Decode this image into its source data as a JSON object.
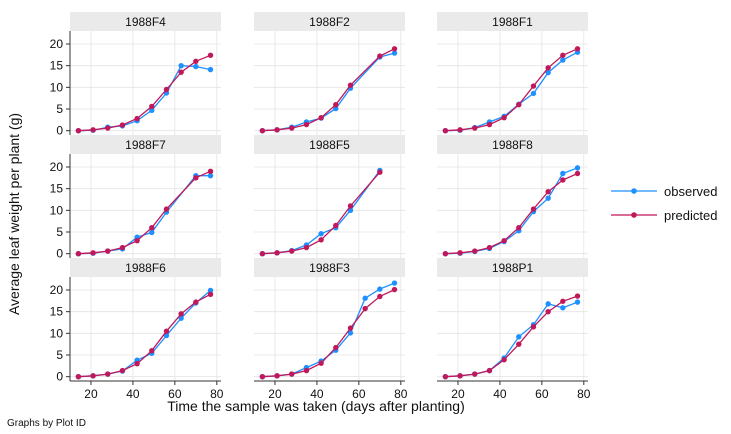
{
  "chart_data": {
    "type": "line",
    "layout": "3x3 small multiples",
    "xlabel": "Time the sample was taken (days after planting)",
    "ylabel": "Average leaf weight per plant (g)",
    "note": "Graphs by Plot ID",
    "xlim": [
      10,
      82
    ],
    "ylim": [
      -1,
      23
    ],
    "xticks": [
      20,
      40,
      60,
      80
    ],
    "yticks": [
      0,
      5,
      10,
      15,
      20
    ],
    "grid": true,
    "legend": {
      "position": "right",
      "entries": [
        "observed",
        "predicted"
      ]
    },
    "series_colors": {
      "observed": "#1e90ff",
      "predicted": "#c0185a"
    },
    "panels": [
      {
        "title": "1988F4",
        "x": [
          14,
          21,
          28,
          35,
          42,
          49,
          56,
          63,
          70,
          77
        ],
        "observed": [
          0.0,
          0.1,
          0.8,
          1.1,
          2.3,
          4.7,
          8.7,
          15.0,
          14.8,
          14.1
        ],
        "predicted": [
          0.0,
          0.2,
          0.6,
          1.3,
          2.8,
          5.6,
          9.5,
          13.5,
          16.0,
          17.4
        ]
      },
      {
        "title": "1988F2",
        "x": [
          14,
          21,
          28,
          35,
          42,
          49,
          56,
          70,
          77
        ],
        "observed": [
          0.0,
          0.2,
          0.8,
          2.0,
          2.9,
          5.1,
          9.8,
          17.0,
          17.9
        ],
        "predicted": [
          0.0,
          0.2,
          0.6,
          1.4,
          3.0,
          6.0,
          10.5,
          17.2,
          18.9
        ]
      },
      {
        "title": "1988F1",
        "x": [
          14,
          21,
          28,
          35,
          42,
          49,
          56,
          63,
          70,
          77
        ],
        "observed": [
          0.0,
          0.1,
          0.7,
          2.0,
          3.3,
          6.1,
          8.6,
          13.4,
          16.3,
          18.1
        ],
        "predicted": [
          0.0,
          0.2,
          0.6,
          1.4,
          3.0,
          6.0,
          10.3,
          14.5,
          17.4,
          18.9
        ]
      },
      {
        "title": "1988F7",
        "x": [
          14,
          21,
          28,
          35,
          42,
          49,
          56,
          70,
          77
        ],
        "observed": [
          0.0,
          0.1,
          0.6,
          1.1,
          3.8,
          4.9,
          9.6,
          18.0,
          18.0
        ],
        "predicted": [
          0.0,
          0.2,
          0.6,
          1.4,
          3.0,
          6.0,
          10.3,
          17.5,
          19.0
        ]
      },
      {
        "title": "1988F5",
        "x": [
          14,
          21,
          28,
          35,
          42,
          49,
          56,
          70
        ],
        "observed": [
          0.0,
          0.2,
          0.7,
          2.0,
          4.6,
          6.0,
          10.0,
          19.2
        ],
        "predicted": [
          0.0,
          0.2,
          0.6,
          1.4,
          3.2,
          6.5,
          11.0,
          18.8
        ]
      },
      {
        "title": "1988F8",
        "x": [
          14,
          21,
          28,
          35,
          42,
          49,
          56,
          63,
          70,
          77
        ],
        "observed": [
          0.0,
          0.1,
          0.5,
          1.2,
          2.8,
          5.3,
          9.7,
          12.8,
          18.5,
          19.8
        ],
        "predicted": [
          0.0,
          0.2,
          0.6,
          1.4,
          3.0,
          6.0,
          10.3,
          14.3,
          17.0,
          18.5
        ]
      },
      {
        "title": "1988F6",
        "x": [
          14,
          21,
          28,
          35,
          42,
          49,
          56,
          63,
          70,
          77
        ],
        "observed": [
          0.0,
          0.2,
          0.6,
          1.3,
          3.8,
          5.4,
          9.5,
          13.5,
          17.0,
          19.9
        ],
        "predicted": [
          0.0,
          0.2,
          0.6,
          1.4,
          3.0,
          6.0,
          10.5,
          14.5,
          17.2,
          19.0
        ]
      },
      {
        "title": "1988F3",
        "x": [
          14,
          21,
          28,
          35,
          42,
          49,
          56,
          63,
          70,
          77
        ],
        "observed": [
          0.0,
          0.2,
          0.6,
          2.1,
          3.6,
          6.1,
          10.1,
          18.1,
          20.2,
          21.6
        ],
        "predicted": [
          0.0,
          0.2,
          0.6,
          1.4,
          3.1,
          6.7,
          11.2,
          15.7,
          18.5,
          20.1
        ]
      },
      {
        "title": "1988P1",
        "x": [
          14,
          21,
          28,
          35,
          42,
          49,
          56,
          63,
          70,
          77
        ],
        "observed": [
          0.0,
          0.2,
          0.6,
          1.4,
          4.3,
          9.2,
          12.0,
          16.8,
          15.9,
          17.2
        ],
        "predicted": [
          0.0,
          0.2,
          0.6,
          1.4,
          3.9,
          7.5,
          11.5,
          15.0,
          17.4,
          18.6
        ]
      }
    ]
  }
}
